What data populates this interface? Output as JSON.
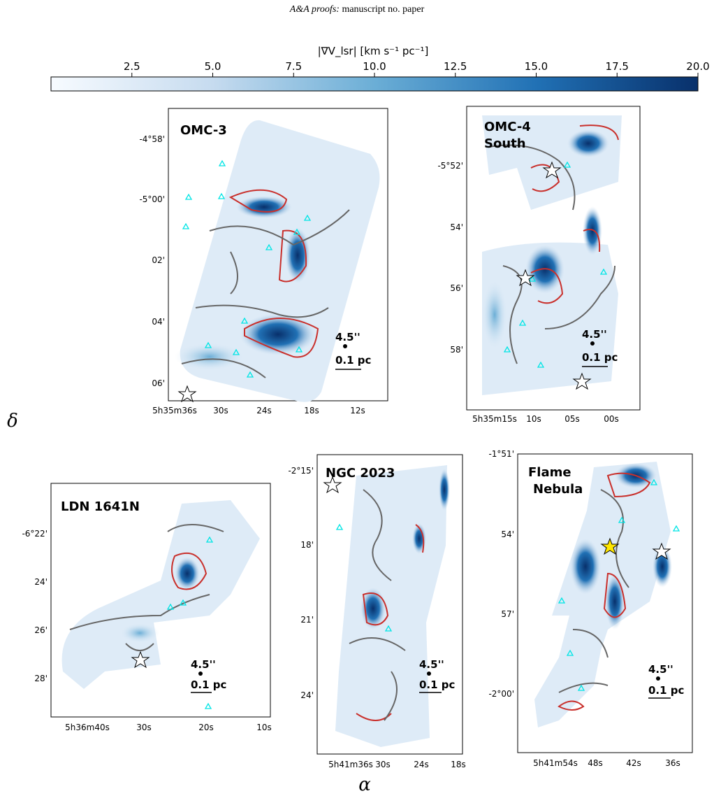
{
  "header": {
    "journal": "A&A proofs:",
    "rest": "manuscript no. paper"
  },
  "colorbar": {
    "label": "|∇V_lsr| [km s⁻¹ pc⁻¹]",
    "range": [
      0,
      20
    ],
    "ticks": [
      "2.5",
      "5.0",
      "7.5",
      "10.0",
      "12.5",
      "15.0",
      "17.5",
      "20.0"
    ],
    "colors": [
      "#f7fbff",
      "#c6dbef",
      "#6baed6",
      "#2171b5",
      "#08306b"
    ]
  },
  "axis_labels": {
    "x": "α",
    "y": "δ"
  },
  "scalebar": {
    "beam": "4.5''",
    "length": "0.1 pc"
  },
  "panels": [
    {
      "name": "OMC-3",
      "yticks": [
        "-4°58'",
        "-5°00'",
        "02'",
        "04'",
        "06'"
      ],
      "xticks": [
        "5h35m36s",
        "30s",
        "24s",
        "18s",
        "12s"
      ]
    },
    {
      "name": "OMC-4 South",
      "yticks": [
        "-5°52'",
        "54'",
        "56'",
        "58'"
      ],
      "xticks": [
        "5h35m15s",
        "10s",
        "05s",
        "00s"
      ]
    },
    {
      "name": "LDN 1641N",
      "yticks": [
        "-6°22'",
        "24'",
        "26'",
        "28'"
      ],
      "xticks": [
        "5h36m40s",
        "30s",
        "20s",
        "10s"
      ]
    },
    {
      "name": "NGC 2023",
      "yticks": [
        "-2°15'",
        "18'",
        "21'",
        "24'"
      ],
      "xticks": [
        "5h41m36s",
        "30s",
        "24s",
        "18s"
      ]
    },
    {
      "name": "Flame Nebula",
      "yticks": [
        "-1°51'",
        "54'",
        "57'",
        "-2°00'"
      ],
      "xticks": [
        "5h41m54s",
        "48s",
        "42s",
        "36s"
      ]
    }
  ],
  "chart_data": [
    {
      "type": "heatmap",
      "title": "OMC-3",
      "colorbar_range": [
        0,
        20
      ],
      "contours": [
        "grey: intensity",
        "red: high gradient"
      ],
      "ylabel": "δ",
      "xlabel": "α"
    },
    {
      "type": "heatmap",
      "title": "OMC-4 South",
      "colorbar_range": [
        0,
        20
      ]
    },
    {
      "type": "heatmap",
      "title": "LDN 1641N",
      "colorbar_range": [
        0,
        20
      ]
    },
    {
      "type": "heatmap",
      "title": "NGC 2023",
      "colorbar_range": [
        0,
        20
      ]
    },
    {
      "type": "heatmap",
      "title": "Flame Nebula",
      "colorbar_range": [
        0,
        20
      ]
    }
  ]
}
